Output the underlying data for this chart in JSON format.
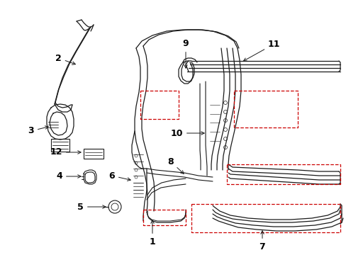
{
  "background_color": "#ffffff",
  "line_color": "#1a1a1a",
  "red_dashed_color": "#cc0000",
  "label_color": "#000000",
  "figsize": [
    4.89,
    3.6
  ],
  "dpi": 100
}
